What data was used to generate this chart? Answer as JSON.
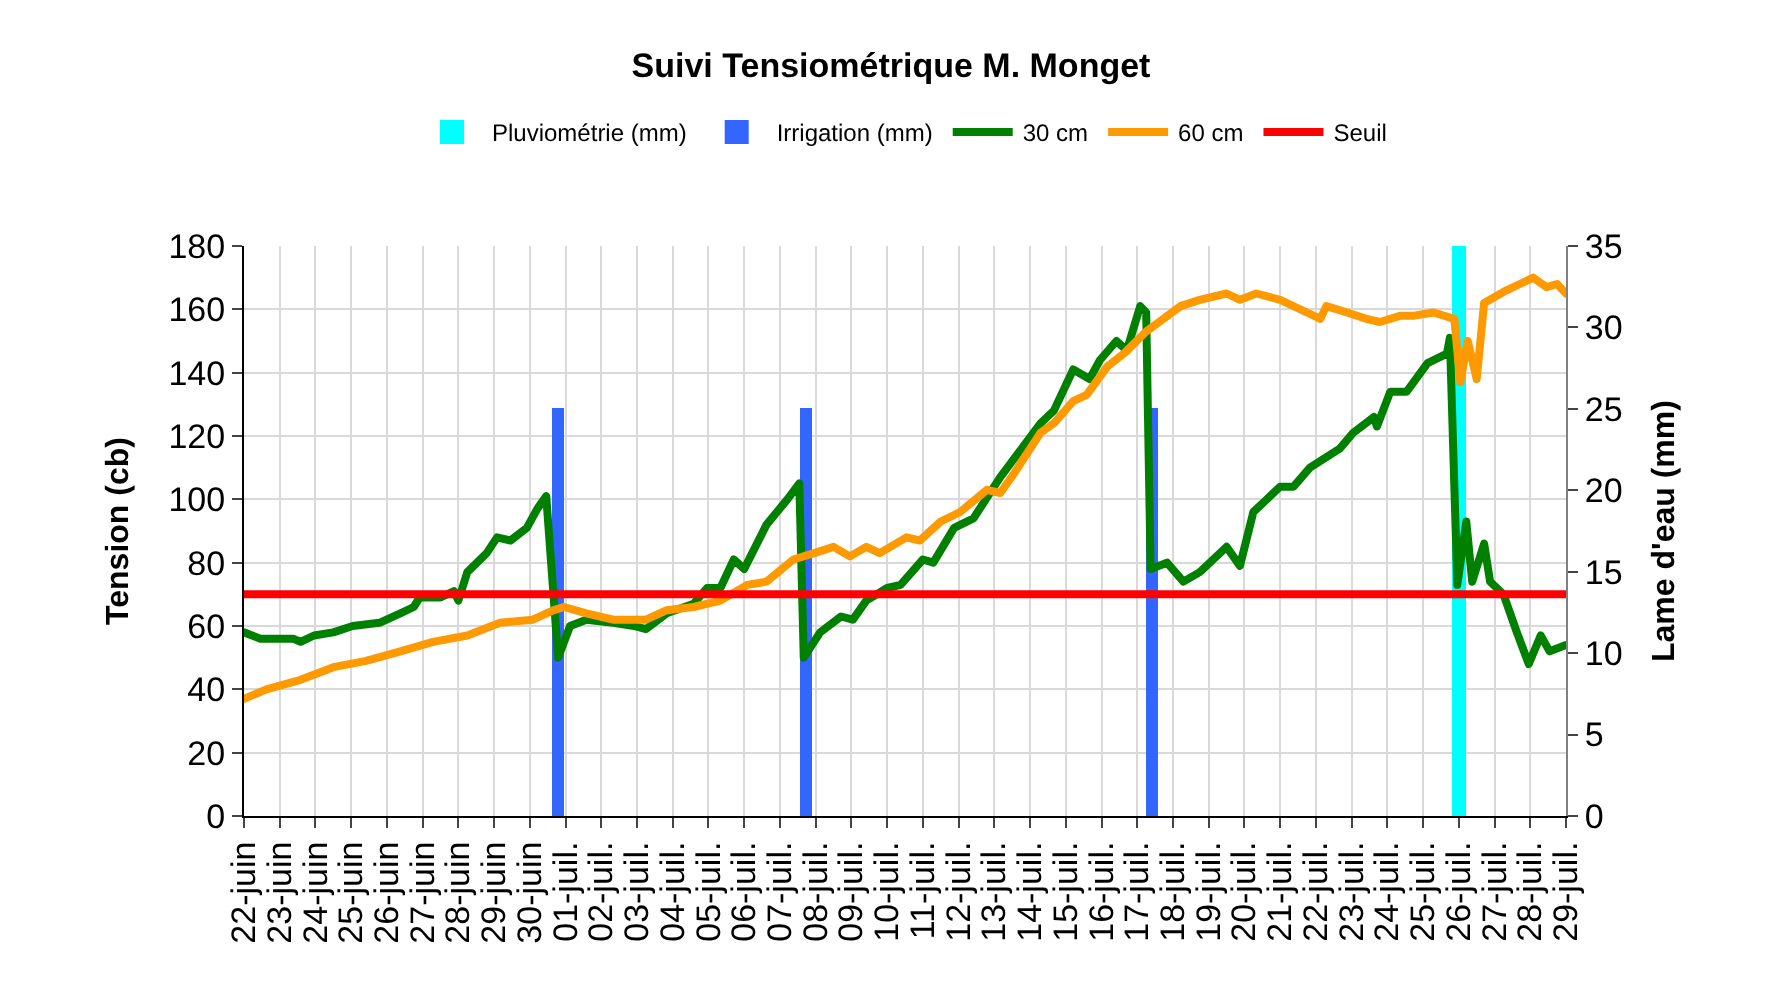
{
  "chart_data": {
    "type": "line",
    "title": "Suivi Tensiométrique M. Monget",
    "ylabel": "Tension (cb)",
    "y2label": "Lame d'eau (mm)",
    "xlim": [
      "--06-22",
      "--07-29"
    ],
    "xticks": [
      {
        "value": "--06-22",
        "label": "22-juin"
      },
      {
        "value": "--06-23",
        "label": "23-juin"
      },
      {
        "value": "--06-24",
        "label": "24-juin"
      },
      {
        "value": "--06-25",
        "label": "25-juin"
      },
      {
        "value": "--06-26",
        "label": "26-juin"
      },
      {
        "value": "--06-27",
        "label": "27-juin"
      },
      {
        "value": "--06-28",
        "label": "28-juin"
      },
      {
        "value": "--06-29",
        "label": "29-juin"
      },
      {
        "value": "--06-30",
        "label": "30-juin"
      },
      {
        "value": "--07-01",
        "label": "01-juil."
      },
      {
        "value": "--07-02",
        "label": "02-juil."
      },
      {
        "value": "--07-03",
        "label": "03-juil."
      },
      {
        "value": "--07-04",
        "label": "04-juil."
      },
      {
        "value": "--07-05",
        "label": "05-juil."
      },
      {
        "value": "--07-06",
        "label": "06-juil."
      },
      {
        "value": "--07-07",
        "label": "07-juil."
      },
      {
        "value": "--07-08",
        "label": "08-juil."
      },
      {
        "value": "--07-09",
        "label": "09-juil."
      },
      {
        "value": "--07-10",
        "label": "10-juil."
      },
      {
        "value": "--07-11",
        "label": "11-juil."
      },
      {
        "value": "--07-12",
        "label": "12-juil."
      },
      {
        "value": "--07-13",
        "label": "13-juil."
      },
      {
        "value": "--07-14",
        "label": "14-juil."
      },
      {
        "value": "--07-15",
        "label": "15-juil."
      },
      {
        "value": "--07-16",
        "label": "16-juil."
      },
      {
        "value": "--07-17",
        "label": "17-juil."
      },
      {
        "value": "--07-18",
        "label": "18-juil."
      },
      {
        "value": "--07-19",
        "label": "19-juil."
      },
      {
        "value": "--07-20",
        "label": "20-juil."
      },
      {
        "value": "--07-21",
        "label": "21-juil."
      },
      {
        "value": "--07-22",
        "label": "22-juil."
      },
      {
        "value": "--07-23",
        "label": "23-juil."
      },
      {
        "value": "--07-24",
        "label": "24-juil."
      },
      {
        "value": "--07-25",
        "label": "25-juil."
      },
      {
        "value": "--07-26",
        "label": "26-juil."
      },
      {
        "value": "--07-27",
        "label": "27-juil."
      },
      {
        "value": "--07-28",
        "label": "28-juil."
      },
      {
        "value": "--07-29",
        "label": "29-juil."
      }
    ],
    "ylim": [
      0,
      180
    ],
    "yticks": [
      0,
      20,
      40,
      60,
      80,
      100,
      120,
      140,
      160,
      180
    ],
    "y2lim": [
      0,
      35
    ],
    "y2ticks": [
      0,
      5,
      10,
      15,
      20,
      25,
      30,
      35
    ],
    "grid": true,
    "legend": "top",
    "marker": "none",
    "line_style": "solid",
    "series": [
      {
        "name": "Pluviométrie (mm)",
        "type": "bar",
        "axis": "y2",
        "color": "#00ffff",
        "x": [
          "--07-26T00:00"
        ],
        "values": [
          35
        ]
      },
      {
        "name": "Irrigation (mm)",
        "type": "bar",
        "axis": "y2",
        "color": "#3366ff",
        "x": [
          "--06-30T19:00",
          "--07-07T17:00",
          "--07-17T10:00"
        ],
        "values": [
          25,
          25,
          25
        ]
      },
      {
        "name": "30 cm",
        "color": "#008000",
        "x": [
          "--06-22T00:00",
          "--06-22T11:00",
          "--06-23T09:00",
          "--06-23T14:00",
          "--06-23T23:00",
          "--06-24T12:00",
          "--06-25T01:00",
          "--06-25T19:00",
          "--06-26T09:00",
          "--06-26T18:00",
          "--06-26T22:00",
          "--06-27T12:00",
          "--06-27T21:00",
          "--06-28T00:00",
          "--06-28T06:00",
          "--06-28T19:00",
          "--06-29T02:00",
          "--06-29T11:00",
          "--06-29T22:00",
          "--06-30T05:00",
          "--06-30T11:00",
          "--06-30T19:00",
          "--07-01T03:00",
          "--07-01T14:00",
          "--07-02T08:00",
          "--07-02T22:00",
          "--07-03T06:00",
          "--07-03T20:00",
          "--07-04T14:00",
          "--07-04T23:00",
          "--07-05T08:00",
          "--07-05T17:00",
          "--07-06T00:00",
          "--07-06T15:00",
          "--07-07T05:00",
          "--07-07T13:00",
          "--07-07T16:00",
          "--07-08T03:00",
          "--07-08T17:00",
          "--07-09T01:00",
          "--07-09T10:00",
          "--07-10T00:00",
          "--07-10T09:00",
          "--07-11T00:00",
          "--07-11T07:00",
          "--07-11T21:00",
          "--07-12T10:00",
          "--07-13T04:00",
          "--07-14T07:00",
          "--07-14T16:00",
          "--07-15T05:00",
          "--07-15T16:00",
          "--07-15T23:00",
          "--07-16T10:00",
          "--07-16T17:00",
          "--07-17T02:00",
          "--07-17T06:00",
          "--07-17T09:00",
          "--07-17T20:00",
          "--07-18T07:00",
          "--07-18T18:00",
          "--07-19T12:00",
          "--07-19T21:00",
          "--07-20T06:00",
          "--07-20T15:00",
          "--07-21T00:00",
          "--07-21T09:00",
          "--07-21T20:00",
          "--07-22T16:00",
          "--07-23T01:00",
          "--07-23T15:00",
          "--07-23T17:00",
          "--07-24T02:00",
          "--07-24T13:00",
          "--07-25T03:00",
          "--07-25T16:00",
          "--07-25T18:00",
          "--07-25T23:00",
          "--07-26T05:00",
          "--07-26T09:00",
          "--07-26T17:00",
          "--07-26T21:00",
          "--07-27T06:00",
          "--07-27T15:00",
          "--07-27T23:00",
          "--07-28T07:00",
          "--07-28T13:00",
          "--07-29T00:00"
        ],
        "values": [
          58,
          56,
          56,
          55,
          57,
          58,
          60,
          61,
          64,
          66,
          69,
          69,
          71,
          68,
          77,
          83,
          88,
          87,
          91,
          97,
          101,
          50,
          60,
          62,
          61,
          60,
          59,
          64,
          67,
          72,
          72,
          81,
          78,
          92,
          100,
          105,
          50,
          58,
          63,
          62,
          68,
          72,
          73,
          81,
          80,
          91,
          94,
          107,
          124,
          128,
          141,
          138,
          144,
          150,
          147,
          161,
          159,
          78,
          80,
          74,
          77,
          85,
          79,
          96,
          100,
          104,
          104,
          110,
          116,
          121,
          126,
          123,
          134,
          134,
          143,
          146,
          151,
          73,
          93,
          74,
          86,
          74,
          70,
          58,
          48,
          57,
          52,
          54
        ]
      },
      {
        "name": "60 cm",
        "color": "#ff9900",
        "x": [
          "--06-22T00:00",
          "--06-22T15:00",
          "--06-23T14:00",
          "--06-24T12:00",
          "--06-25T10:00",
          "--06-26T09:00",
          "--06-27T07:00",
          "--06-28T06:00",
          "--06-29T04:00",
          "--06-30T02:00",
          "--06-30T16:00",
          "--06-30T23:00",
          "--07-01T14:00",
          "--07-02T08:00",
          "--07-02T22:00",
          "--07-03T06:00",
          "--07-03T20:00",
          "--07-04T14:00",
          "--07-05T08:00",
          "--07-06T02:00",
          "--07-06T15:00",
          "--07-07T09:00",
          "--07-07T23:00",
          "--07-08T12:00",
          "--07-08T23:00",
          "--07-09T10:00",
          "--07-09T19:00",
          "--07-10T13:00",
          "--07-10T22:00",
          "--07-11T12:00",
          "--07-12T01:00",
          "--07-12T19:00",
          "--07-13T04:00",
          "--07-13T13:00",
          "--07-14T07:00",
          "--07-14T16:00",
          "--07-15T05:00",
          "--07-15T14:00",
          "--07-16T04:00",
          "--07-16T15:00",
          "--07-17T06:00",
          "--07-18T05:00",
          "--07-18T18:00",
          "--07-19T12:00",
          "--07-19T21:00",
          "--07-20T08:00",
          "--07-21T00:00",
          "--07-21T18:00",
          "--07-22T03:00",
          "--07-22T07:00",
          "--07-22T21:00",
          "--07-23T10:00",
          "--07-23T19:00",
          "--07-24T09:00",
          "--07-24T18:00",
          "--07-25T07:00",
          "--07-25T21:00",
          "--07-26T01:00",
          "--07-26T06:00",
          "--07-26T12:00",
          "--07-26T17:00",
          "--07-27T08:00",
          "--07-27T17:00",
          "--07-28T02:00",
          "--07-28T11:00",
          "--07-28T18:00",
          "--07-29T00:00"
        ],
        "values": [
          37,
          40,
          43,
          47,
          49,
          52,
          55,
          57,
          61,
          62,
          65,
          66,
          64,
          62,
          62,
          62,
          65,
          66,
          68,
          73,
          74,
          81,
          83,
          85,
          82,
          85,
          83,
          88,
          87,
          93,
          96,
          103,
          102,
          108,
          121,
          124,
          131,
          133,
          142,
          146,
          153,
          161,
          163,
          165,
          163,
          165,
          163,
          159,
          157,
          161,
          159,
          157,
          156,
          158,
          158,
          159,
          157,
          137,
          150,
          138,
          162,
          166,
          168,
          170,
          167,
          168,
          165
        ]
      }
    ],
    "ref_lines": [
      {
        "axis": "y",
        "value": 70,
        "label": "Seuil",
        "color": "#ff0000",
        "line_style": "solid"
      }
    ]
  }
}
